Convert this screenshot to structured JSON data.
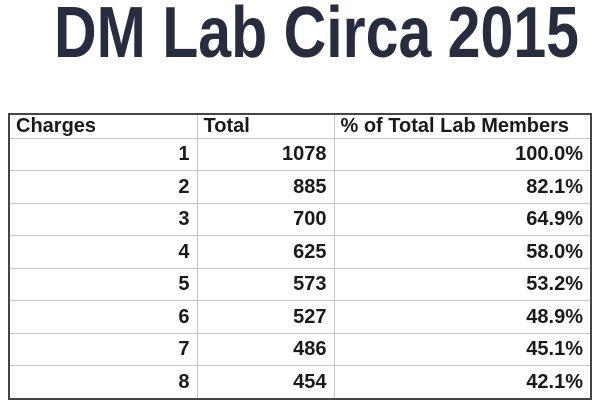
{
  "title": "DM Lab Circa 2015",
  "colors": {
    "title_text": "#282c3f",
    "table_text": "#1a1a1a",
    "outer_border": "#454545",
    "gridline": "#c6c6c6",
    "background": "#ffffff"
  },
  "chart_data": {
    "type": "table",
    "title": "DM Lab Circa 2015",
    "columns": [
      "Charges",
      "Total",
      "% of Total Lab Members"
    ],
    "rows": [
      [
        "1",
        "1078",
        "100.0%"
      ],
      [
        "2",
        "885",
        "82.1%"
      ],
      [
        "3",
        "700",
        "64.9%"
      ],
      [
        "4",
        "625",
        "58.0%"
      ],
      [
        "5",
        "573",
        "53.2%"
      ],
      [
        "6",
        "527",
        "48.9%"
      ],
      [
        "7",
        "486",
        "45.1%"
      ],
      [
        "8",
        "454",
        "42.1%"
      ]
    ]
  }
}
